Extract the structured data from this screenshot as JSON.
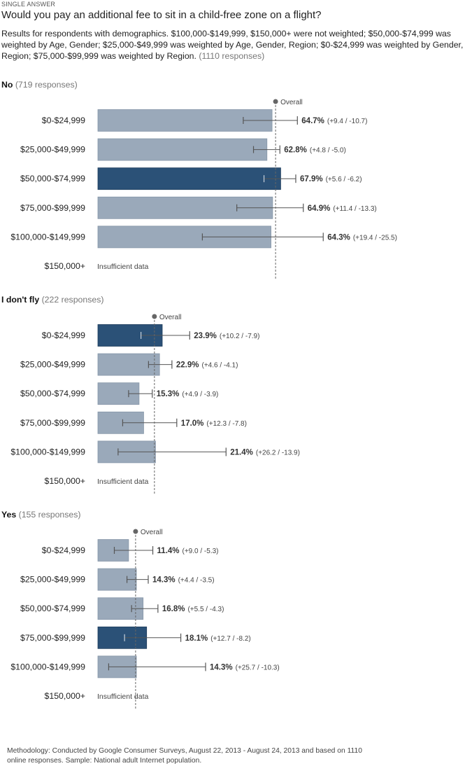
{
  "header": {
    "kicker": "SINGLE ANSWER",
    "question": "Would you pay an additional fee to sit in a child-free zone on a flight?",
    "subtitle": "Results for respondents with demographics. $100,000-$149,999, $150,000+ were not weighted; $50,000-$74,999 was weighted by Age, Gender; $25,000-$49,999 was weighted by Age, Gender, Region; $0-$24,999 was weighted by Gender, Region; $75,000-$99,999 was weighted by Region.",
    "total_responses": "(1110 responses)"
  },
  "labels": {
    "overall": "Overall",
    "insufficient": "Insufficient data"
  },
  "colors": {
    "bar": "#9aa9ba",
    "bar_highlight": "#2b5177",
    "whisker": "#555555",
    "overall_line": "#666666"
  },
  "chart_data": [
    {
      "type": "bar",
      "orientation": "horizontal",
      "answer": "No",
      "responses": "(719 responses)",
      "overall_percent": 66.0,
      "xlim": [
        0,
        100
      ],
      "categories": [
        "$0-$24,999",
        "$25,000-$49,999",
        "$50,000-$74,999",
        "$75,000-$99,999",
        "$100,000-$149,999",
        "$150,000+"
      ],
      "values": [
        64.7,
        62.8,
        67.9,
        64.9,
        64.3,
        null
      ],
      "value_labels": [
        "64.7%",
        "62.8%",
        "67.9%",
        "64.9%",
        "64.3%",
        ""
      ],
      "error_labels": [
        "(+9.4 / -10.7)",
        "(+4.8 / -5.0)",
        "(+5.6 / -6.2)",
        "(+11.4 / -13.3)",
        "(+19.4 / -25.5)",
        ""
      ],
      "error_plus": [
        9.4,
        4.8,
        5.6,
        11.4,
        19.4,
        null
      ],
      "error_minus": [
        10.7,
        5.0,
        6.2,
        13.3,
        25.5,
        null
      ],
      "highlight_index": 2
    },
    {
      "type": "bar",
      "orientation": "horizontal",
      "answer": "I don't fly",
      "responses": "(222 responses)",
      "overall_percent": 21.0,
      "xlim": [
        0,
        100
      ],
      "categories": [
        "$0-$24,999",
        "$25,000-$49,999",
        "$50,000-$74,999",
        "$75,000-$99,999",
        "$100,000-$149,999",
        "$150,000+"
      ],
      "values": [
        23.9,
        22.9,
        15.3,
        17.0,
        21.4,
        null
      ],
      "value_labels": [
        "23.9%",
        "22.9%",
        "15.3%",
        "17.0%",
        "21.4%",
        ""
      ],
      "error_labels": [
        "(+10.2 / -7.9)",
        "(+4.6 / -4.1)",
        "(+4.9 / -3.9)",
        "(+12.3 / -7.8)",
        "(+26.2 / -13.9)",
        ""
      ],
      "error_plus": [
        10.2,
        4.6,
        4.9,
        12.3,
        26.2,
        null
      ],
      "error_minus": [
        7.9,
        4.1,
        3.9,
        7.8,
        13.9,
        null
      ],
      "highlight_index": 0
    },
    {
      "type": "bar",
      "orientation": "horizontal",
      "answer": "Yes",
      "responses": "(155 responses)",
      "overall_percent": 14.0,
      "xlim": [
        0,
        100
      ],
      "categories": [
        "$0-$24,999",
        "$25,000-$49,999",
        "$50,000-$74,999",
        "$75,000-$99,999",
        "$100,000-$149,999",
        "$150,000+"
      ],
      "values": [
        11.4,
        14.3,
        16.8,
        18.1,
        14.3,
        null
      ],
      "value_labels": [
        "11.4%",
        "14.3%",
        "16.8%",
        "18.1%",
        "14.3%",
        ""
      ],
      "error_labels": [
        "(+9.0 / -5.3)",
        "(+4.4 / -3.5)",
        "(+5.5 / -4.3)",
        "(+12.7 / -8.2)",
        "(+25.7 / -10.3)",
        ""
      ],
      "error_plus": [
        9.0,
        4.4,
        5.5,
        12.7,
        25.7,
        null
      ],
      "error_minus": [
        5.3,
        3.5,
        4.3,
        8.2,
        10.3,
        null
      ],
      "highlight_index": 3
    }
  ],
  "footer": {
    "methodology": "Methodology: Conducted by Google Consumer Surveys, August 22, 2013 - August 24, 2013 and based on 1110 online responses. Sample: National adult Internet population."
  }
}
